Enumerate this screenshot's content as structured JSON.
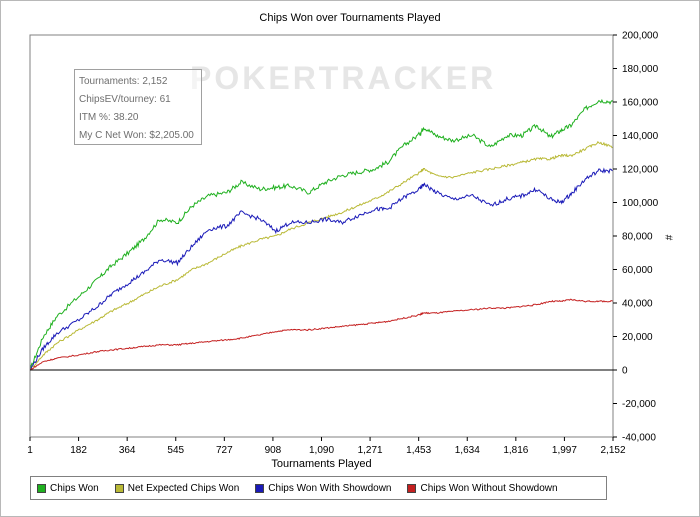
{
  "chart_data": {
    "type": "line",
    "title": "Chips Won over Tournaments Played",
    "xlabel": "Tournaments Played",
    "ylabel": "#",
    "x_ticks": [
      "1",
      "182",
      "364",
      "545",
      "727",
      "908",
      "1,090",
      "1,271",
      "1,453",
      "1,634",
      "1,816",
      "1,997",
      "2,152"
    ],
    "y_ticks": [
      "200,000",
      "180,000",
      "160,000",
      "140,000",
      "120,000",
      "100,000",
      "80,000",
      "60,000",
      "40,000",
      "20,000",
      "0",
      "-20,000",
      "-40,000"
    ],
    "xlim": [
      1,
      2152
    ],
    "ylim": [
      -40000,
      200000
    ],
    "grid": false,
    "legend_position": "bottom",
    "series": [
      {
        "name": "Chips Won",
        "color": "#1fb01f",
        "x": [
          1,
          50,
          100,
          182,
          250,
          300,
          364,
          420,
          480,
          545,
          600,
          660,
          727,
          780,
          850,
          908,
          960,
          1030,
          1090,
          1150,
          1210,
          1271,
          1320,
          1380,
          1440,
          1453,
          1500,
          1560,
          1634,
          1700,
          1760,
          1816,
          1870,
          1920,
          1960,
          1997,
          2050,
          2100,
          2152
        ],
        "values": [
          0,
          20000,
          32000,
          44000,
          54000,
          62000,
          70000,
          78000,
          90000,
          88000,
          98000,
          104000,
          106000,
          112000,
          108000,
          109000,
          110000,
          106000,
          112000,
          116000,
          118000,
          120000,
          124000,
          134000,
          141000,
          145000,
          140000,
          137000,
          140000,
          133000,
          140000,
          140000,
          146000,
          139000,
          143000,
          146000,
          156000,
          161000,
          160000
        ]
      },
      {
        "name": "Net Expected Chips Won",
        "color": "#b9b936",
        "x": [
          1,
          50,
          100,
          182,
          250,
          300,
          364,
          420,
          480,
          545,
          600,
          660,
          727,
          780,
          850,
          908,
          960,
          1030,
          1090,
          1150,
          1210,
          1271,
          1320,
          1380,
          1440,
          1453,
          1500,
          1560,
          1634,
          1700,
          1760,
          1816,
          1870,
          1920,
          1960,
          1997,
          2050,
          2100,
          2152
        ],
        "values": [
          0,
          9000,
          16000,
          24000,
          30000,
          35000,
          40000,
          45000,
          50000,
          54000,
          60000,
          64000,
          70000,
          74000,
          78000,
          80000,
          84000,
          88000,
          91000,
          94000,
          98000,
          102000,
          106000,
          112000,
          118000,
          120000,
          116000,
          115000,
          118000,
          120000,
          122000,
          124000,
          126000,
          126000,
          128000,
          128000,
          132000,
          136000,
          133000
        ]
      },
      {
        "name": "Chips Won With Showdown",
        "color": "#1a1ab8",
        "x": [
          1,
          50,
          100,
          182,
          250,
          300,
          364,
          420,
          480,
          545,
          600,
          660,
          727,
          780,
          850,
          908,
          960,
          1030,
          1090,
          1150,
          1210,
          1271,
          1320,
          1380,
          1440,
          1453,
          1500,
          1560,
          1634,
          1700,
          1760,
          1816,
          1870,
          1920,
          1960,
          1997,
          2050,
          2100,
          2152
        ],
        "values": [
          0,
          13000,
          22000,
          30000,
          38000,
          45000,
          52000,
          58000,
          66000,
          64000,
          74000,
          84000,
          86000,
          94000,
          90000,
          83000,
          88000,
          88000,
          90000,
          88000,
          92000,
          96000,
          96000,
          103000,
          108000,
          111000,
          106000,
          102000,
          104000,
          98000,
          102000,
          104000,
          108000,
          102000,
          100000,
          105000,
          114000,
          119000,
          119000
        ]
      },
      {
        "name": "Chips Won Without Showdown",
        "color": "#c42020",
        "x": [
          1,
          50,
          100,
          182,
          250,
          300,
          364,
          420,
          480,
          545,
          600,
          660,
          727,
          780,
          850,
          908,
          960,
          1030,
          1090,
          1150,
          1210,
          1271,
          1320,
          1380,
          1440,
          1453,
          1500,
          1560,
          1634,
          1700,
          1760,
          1816,
          1870,
          1920,
          1960,
          1997,
          2050,
          2100,
          2152
        ],
        "values": [
          0,
          5000,
          7000,
          9000,
          11000,
          12000,
          13000,
          14000,
          15000,
          15000,
          16000,
          17000,
          18000,
          19000,
          21000,
          23000,
          24000,
          24000,
          25000,
          26000,
          27000,
          28000,
          29000,
          31000,
          33000,
          34000,
          34000,
          35000,
          36000,
          37000,
          37000,
          38000,
          39000,
          41000,
          41000,
          42000,
          41000,
          41000,
          41000
        ]
      }
    ]
  },
  "infobox": {
    "line1": "Tournaments: 2,152",
    "line2": "ChipsEV/tourney: 61",
    "line3": "ITM %: 38.20",
    "line4": "My C Net Won: $2,205.00"
  },
  "watermark": "POKERTRACKER"
}
